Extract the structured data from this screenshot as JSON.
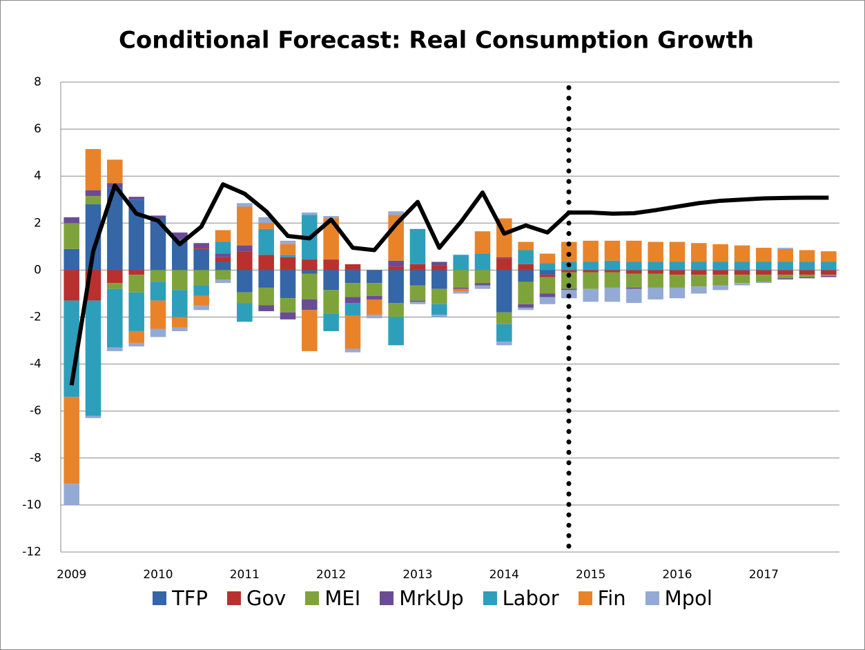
{
  "chart_data": {
    "type": "stacked-bar-line",
    "title": "Conditional Forecast: Real Consumption Growth",
    "categories": [
      "2009",
      null,
      null,
      null,
      "2010",
      null,
      null,
      null,
      "2011",
      null,
      null,
      null,
      "2012",
      null,
      null,
      null,
      "2013",
      null,
      null,
      null,
      "2014",
      null,
      null,
      null,
      "2015",
      null,
      null,
      null,
      "2016",
      null,
      null,
      null,
      "2017",
      null,
      null,
      null
    ],
    "ylim": [
      -12,
      8
    ],
    "yticks": [
      8,
      6,
      4,
      2,
      0,
      -2,
      -4,
      -6,
      -8,
      -10,
      -12
    ],
    "grid": true,
    "legend": "bottom",
    "series": [
      {
        "name": "TFP",
        "color": "#3466a8",
        "values": [
          0.9,
          2.8,
          3.5,
          3.0,
          2.2,
          1.3,
          0.9,
          0.35,
          -0.95,
          -0.75,
          -1.2,
          -0.15,
          -0.85,
          -0.55,
          -0.55,
          -1.4,
          -0.65,
          -0.8,
          0,
          0,
          -1.8,
          -0.5,
          -0.2,
          0,
          0,
          0,
          0,
          0,
          0,
          0,
          0,
          0,
          0,
          0,
          0,
          0
        ]
      },
      {
        "name": "Gov",
        "color": "#b8312f",
        "values": [
          -1.3,
          -1.3,
          -0.55,
          -0.2,
          0,
          0,
          0.05,
          0.2,
          0.8,
          0.65,
          0.55,
          0.45,
          0.45,
          0.25,
          0,
          0.15,
          0.25,
          0.2,
          0,
          0,
          0.5,
          0.25,
          -0.1,
          -0.1,
          -0.1,
          -0.1,
          -0.15,
          -0.15,
          -0.2,
          -0.2,
          -0.2,
          -0.2,
          -0.2,
          -0.2,
          -0.2,
          -0.2
        ]
      },
      {
        "name": "MEI",
        "color": "#7fa33b",
        "values": [
          1.1,
          0.35,
          -0.25,
          -0.75,
          -0.5,
          -0.85,
          -0.65,
          -0.4,
          -0.45,
          -0.75,
          -0.6,
          -1.1,
          -1.0,
          -0.6,
          -0.55,
          -0.6,
          -0.65,
          -0.65,
          -0.75,
          -0.55,
          -0.5,
          -0.95,
          -0.7,
          -0.7,
          -0.7,
          -0.65,
          -0.6,
          -0.6,
          -0.55,
          -0.5,
          -0.45,
          -0.35,
          -0.3,
          -0.15,
          -0.1,
          -0.05
        ]
      },
      {
        "name": "MrkUp",
        "color": "#6a4c95",
        "values": [
          0.25,
          0.25,
          0.2,
          0.12,
          0.12,
          0.3,
          0.2,
          0.15,
          0.25,
          -0.25,
          -0.3,
          -0.45,
          0,
          -0.25,
          -0.15,
          0.25,
          -0.05,
          0.15,
          -0.05,
          -0.1,
          0.05,
          -0.15,
          -0.15,
          -0.05,
          0,
          0,
          -0.05,
          0,
          0,
          0,
          0,
          0,
          0,
          -0.05,
          -0.05,
          -0.05
        ]
      },
      {
        "name": "Labor",
        "color": "#2d9fba",
        "values": [
          -4.1,
          -4.9,
          -2.5,
          -1.65,
          -0.8,
          -1.15,
          -0.45,
          0.5,
          -0.8,
          1.1,
          0.1,
          1.9,
          -0.75,
          -0.55,
          0,
          -1.2,
          1.5,
          -0.45,
          0.65,
          0.7,
          -0.75,
          0.6,
          0.3,
          0.35,
          0.35,
          0.4,
          0.35,
          0.35,
          0.35,
          0.35,
          0.35,
          0.35,
          0.35,
          0.35,
          0.35,
          0.35
        ]
      },
      {
        "name": "Fin",
        "color": "#e8832a",
        "values": [
          -3.7,
          1.75,
          1.0,
          -0.5,
          -1.2,
          -0.45,
          -0.4,
          0.5,
          1.65,
          0.25,
          0.45,
          -1.75,
          1.75,
          -1.4,
          -0.65,
          1.95,
          0,
          0,
          -0.1,
          0.95,
          1.65,
          0.35,
          0.4,
          0.85,
          0.9,
          0.85,
          0.9,
          0.85,
          0.85,
          0.8,
          0.75,
          0.7,
          0.6,
          0.55,
          0.5,
          0.45
        ]
      },
      {
        "name": "Mpol",
        "color": "#94aad6",
        "values": [
          -0.9,
          -0.1,
          -0.15,
          -0.15,
          -0.35,
          -0.15,
          -0.2,
          -0.15,
          0.15,
          0.25,
          0.15,
          0.1,
          0.1,
          -0.15,
          -0.15,
          0.15,
          -0.1,
          -0.1,
          -0.1,
          -0.15,
          -0.15,
          -0.1,
          -0.3,
          -0.35,
          -0.55,
          -0.6,
          -0.6,
          -0.5,
          -0.45,
          -0.3,
          -0.2,
          -0.1,
          -0.05,
          0.05,
          0,
          0
        ]
      }
    ],
    "line": {
      "color": "#000000",
      "values": [
        -4.9,
        0.8,
        3.6,
        2.4,
        2.1,
        1.1,
        1.85,
        3.65,
        3.25,
        2.5,
        1.45,
        1.35,
        2.15,
        0.95,
        0.85,
        1.95,
        2.9,
        0.95,
        2.05,
        3.3,
        1.55,
        1.9,
        1.6,
        2.45,
        2.45,
        2.4,
        2.42,
        2.55,
        2.7,
        2.85,
        2.95,
        3.0,
        3.05,
        3.07,
        3.08,
        3.08
      ]
    }
  }
}
